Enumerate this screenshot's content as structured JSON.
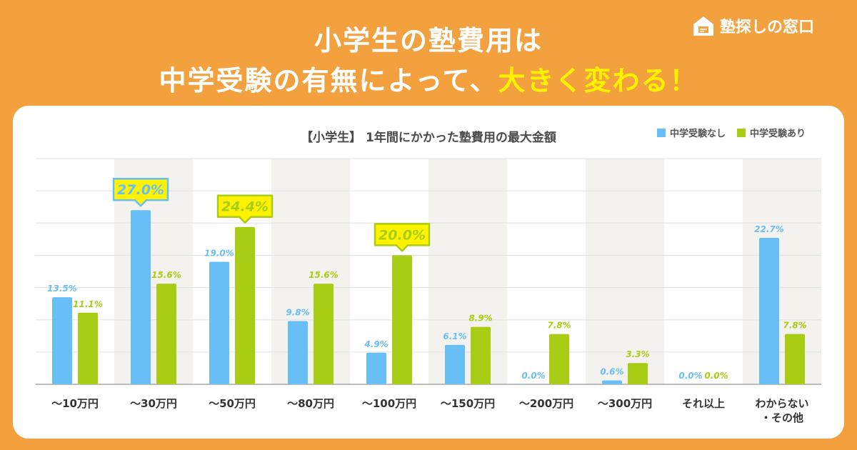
{
  "headline": {
    "line1": "小学生の塾費用は",
    "line2_pre": "中学受験の有無によって、",
    "line2_accent": "大きく変わる！"
  },
  "logo": {
    "text": "塾探しの窓口",
    "icon": "house-icon"
  },
  "colors": {
    "background": "#F2A13E",
    "accent_text": "#FFF200",
    "no_exam": "#67BFF5",
    "with_exam": "#A9CC14",
    "band": "#F4F2EE"
  },
  "chart_data": {
    "type": "bar",
    "title": "【小学生】 1年間にかかった塾費用の最大金額",
    "xlabel": "",
    "ylabel": "",
    "ylim": [
      0,
      35
    ],
    "grid": true,
    "legend_position": "top-right",
    "categories": [
      "〜10万円",
      "〜30万円",
      "〜50万円",
      "〜80万円",
      "〜100万円",
      "〜150万円",
      "〜200万円",
      "〜300万円",
      "それ以上",
      "わからない\n・その他"
    ],
    "series": [
      {
        "name": "中学受験なし",
        "color": "#67BFF5",
        "values": [
          13.5,
          27.0,
          19.0,
          9.8,
          4.9,
          6.1,
          0.0,
          0.6,
          0.0,
          22.7
        ],
        "labels": [
          "13.5%",
          "27.0%",
          "19.0%",
          "9.8%",
          "4.9%",
          "6.1%",
          "0.0%",
          "0.6%",
          "0.0%",
          "22.7%"
        ]
      },
      {
        "name": "中学受験あり",
        "color": "#A9CC14",
        "values": [
          11.1,
          15.6,
          24.4,
          15.6,
          20.0,
          8.9,
          7.8,
          3.3,
          0.0,
          7.8
        ],
        "labels": [
          "11.1%",
          "15.6%",
          "24.4%",
          "15.6%",
          "20.0%",
          "8.9%",
          "7.8%",
          "3.3%",
          "0.0%",
          "7.8%"
        ]
      }
    ],
    "highlights": [
      {
        "series": 0,
        "category": 1
      },
      {
        "series": 1,
        "category": 2
      },
      {
        "series": 1,
        "category": 4
      }
    ]
  }
}
